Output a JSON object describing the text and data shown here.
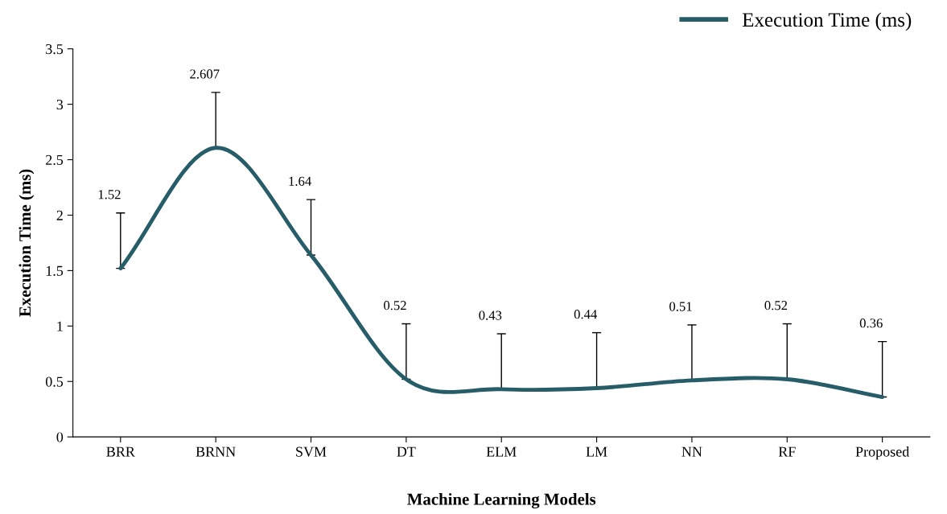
{
  "chart_data": {
    "type": "line",
    "xlabel": "Machine Learning Models",
    "ylabel": "Execution Time (ms)",
    "categories": [
      "BRR",
      "BRNN",
      "SVM",
      "DT",
      "ELM",
      "LM",
      "NN",
      "RF",
      "Proposed"
    ],
    "series": [
      {
        "name": "Execution Time (ms)",
        "color": "#275d69",
        "values": [
          1.52,
          2.607,
          1.64,
          0.52,
          0.43,
          0.44,
          0.51,
          0.52,
          0.36
        ],
        "errors": [
          [
            1.52,
            2.02
          ],
          [
            2.607,
            3.107
          ],
          [
            1.64,
            2.14
          ],
          [
            0.52,
            1.02
          ],
          [
            0.43,
            0.93
          ],
          [
            0.44,
            0.94
          ],
          [
            0.51,
            1.01
          ],
          [
            0.52,
            1.02
          ],
          [
            0.36,
            0.86
          ]
        ]
      }
    ],
    "ylim": [
      0,
      3.5
    ],
    "yticks": [
      0,
      0.5,
      1,
      1.5,
      2,
      2.5,
      3,
      3.5
    ],
    "annotations": [
      {
        "text": "1.52",
        "x": "BRR",
        "y": 2.02
      },
      {
        "text": "2.607",
        "x": "BRNN",
        "y": 3.107
      },
      {
        "text": "1.64",
        "x": "SVM",
        "y": 2.14
      },
      {
        "text": "0.52",
        "x": "DT",
        "y": 1.02
      },
      {
        "text": "0.43",
        "x": "ELM",
        "y": 0.93
      },
      {
        "text": "0.44",
        "x": "LM",
        "y": 0.94
      },
      {
        "text": "0.51",
        "x": "NN",
        "y": 1.01
      },
      {
        "text": "0.52",
        "x": "RF",
        "y": 1.02
      },
      {
        "text": "0.36",
        "x": "Proposed",
        "y": 0.86
      }
    ],
    "legend": "top right",
    "grid": false,
    "marker": "none",
    "line_style": "solid"
  }
}
